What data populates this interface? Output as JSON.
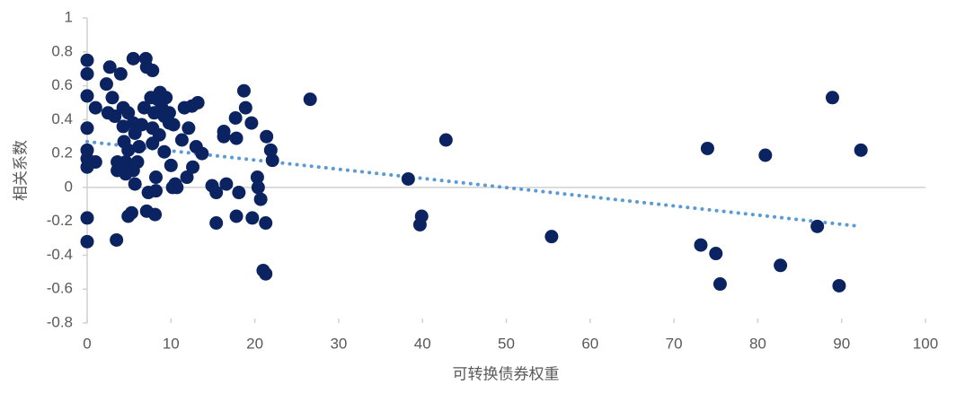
{
  "chart_data": {
    "type": "scatter",
    "x_label": "可转换债券权重",
    "y_label": "相关系数",
    "color": "#0b2461",
    "x": [
      0,
      0,
      0,
      0,
      0,
      0,
      0,
      0,
      0,
      1,
      1,
      2.3,
      2.7,
      2.5,
      3,
      3.3,
      3.6,
      3.6,
      3.5,
      4,
      4.3,
      4.3,
      4.4,
      4.6,
      4.6,
      4.9,
      4.9,
      4.9,
      5.3,
      5.5,
      5.5,
      5.7,
      5.5,
      5.7,
      6,
      6.2,
      6.5,
      6.8,
      7,
      7.1,
      7.1,
      7.3,
      7.6,
      7.8,
      7.8,
      7.8,
      8,
      8.1,
      8.2,
      8.2,
      8.4,
      8.6,
      8.7,
      8.9,
      9.2,
      9.2,
      9.4,
      9.8,
      9.8,
      10,
      10.2,
      10.3,
      10.5,
      10.7,
      11.3,
      11.6,
      11.9,
      12.1,
      12.5,
      12.6,
      13,
      13.2,
      13.7,
      14.9,
      15.4,
      15.4,
      16.3,
      16.3,
      16.6,
      17.7,
      17.8,
      17.8,
      18.1,
      18.7,
      18.9,
      19.6,
      19.7,
      20.3,
      20.4,
      20.7,
      21,
      21.3,
      21.3,
      21.4,
      21.9,
      22.1,
      26.6,
      38.3,
      39.9,
      39.7,
      42.8,
      55.4,
      73.2,
      74,
      75,
      75.5,
      80.9,
      82.7,
      87.1,
      88.9,
      89.7,
      92.3
    ],
    "values": [
      0.75,
      0.67,
      0.54,
      0.35,
      0.22,
      0.17,
      0.12,
      -0.18,
      -0.32,
      0.47,
      0.15,
      0.61,
      0.71,
      0.44,
      0.53,
      0.42,
      0.15,
      0.1,
      -0.31,
      0.67,
      0.47,
      0.36,
      0.27,
      0.15,
      0.08,
      0.44,
      0.22,
      -0.17,
      -0.15,
      0.76,
      0.38,
      0.32,
      0.1,
      0.02,
      0.15,
      0.24,
      0.37,
      0.47,
      0.76,
      0.71,
      -0.14,
      -0.03,
      0.53,
      0.69,
      0.35,
      0.26,
      0.44,
      -0.16,
      0.06,
      -0.02,
      0.52,
      0.31,
      0.56,
      0.47,
      0.42,
      0.21,
      0.53,
      0.44,
      0.38,
      0.13,
      0,
      0.37,
      0.02,
      0,
      0.28,
      0.47,
      0.06,
      0.35,
      0.48,
      0.12,
      0.24,
      0.5,
      0.2,
      0.01,
      -0.03,
      -0.21,
      0.33,
      0.3,
      0.02,
      0.41,
      0.29,
      -0.17,
      -0.03,
      0.57,
      0.47,
      0.38,
      -0.18,
      0.06,
      0,
      -0.07,
      -0.49,
      -0.51,
      -0.21,
      0.3,
      0.22,
      0.16,
      0.52,
      0.05,
      -0.17,
      -0.22,
      0.28,
      -0.29,
      -0.34,
      0.23,
      -0.39,
      -0.57,
      0.19,
      -0.46,
      -0.23,
      0.53,
      -0.58,
      0.22
    ],
    "trendline": {
      "x": [
        0,
        92.3
      ],
      "values": [
        0.27,
        -0.23
      ],
      "color": "#5b9bd5"
    },
    "xlim": [
      0,
      100
    ],
    "xticks": [
      0,
      10,
      20,
      30,
      40,
      50,
      60,
      70,
      80,
      90,
      100
    ],
    "ylim": [
      -0.8,
      1
    ],
    "yticks": [
      -0.8,
      -0.6,
      -0.4,
      -0.2,
      0,
      0.2,
      0.4,
      0.6,
      0.8,
      1
    ]
  }
}
